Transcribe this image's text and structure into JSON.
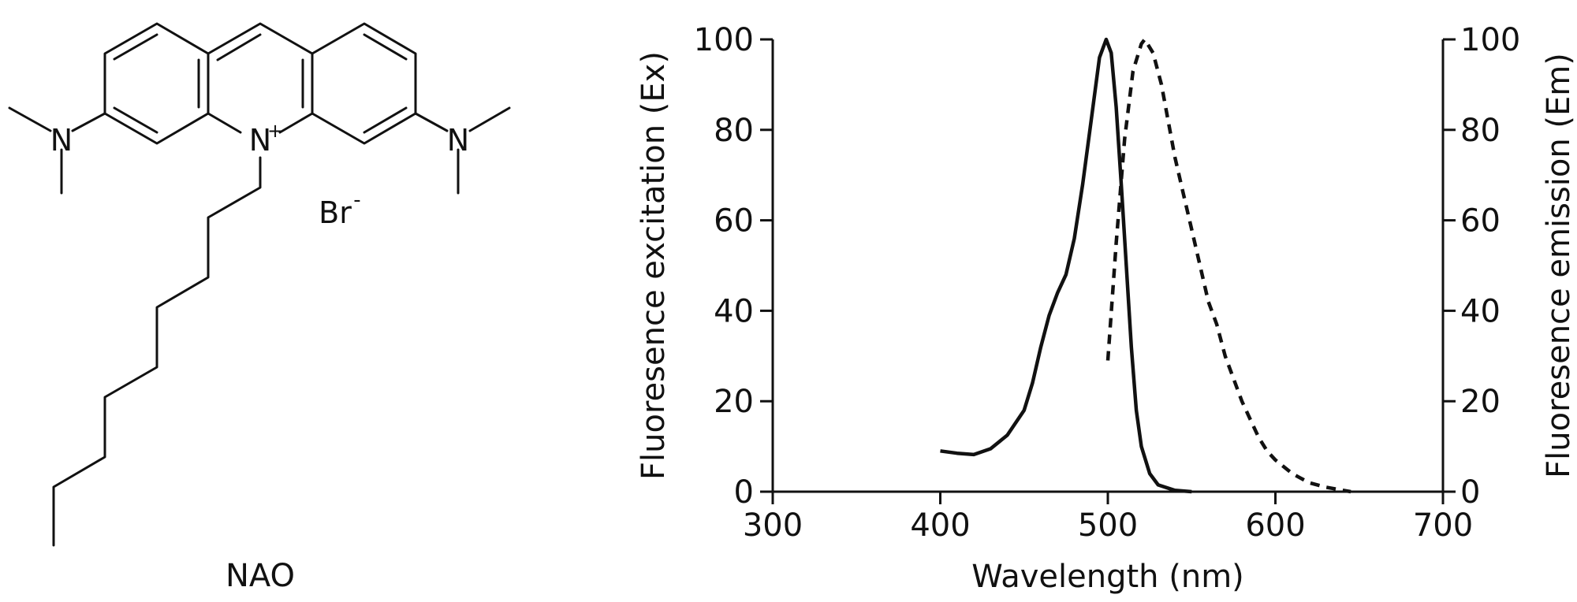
{
  "structure": {
    "atoms": {
      "n_left": "N",
      "n_ring": "N",
      "n_ring_charge": "+",
      "n_right": "N",
      "bromide": "Br",
      "bromide_charge": "-"
    },
    "caption": "NAO"
  },
  "chart_data": {
    "type": "line",
    "x": {
      "label": "Wavelength (nm)",
      "range": [
        300,
        700
      ],
      "ticks": [
        300,
        400,
        500,
        600,
        700
      ]
    },
    "y_left": {
      "label": "Fluoresence excitation (Ex)",
      "range": [
        0,
        100
      ],
      "ticks": [
        0,
        20,
        40,
        60,
        80,
        100
      ]
    },
    "y_right": {
      "label": "Fluoresence emission (Em)",
      "range": [
        0,
        100
      ],
      "ticks": [
        0,
        20,
        40,
        60,
        80,
        100
      ]
    },
    "grid": false,
    "legend": "none",
    "series": [
      {
        "style": "solid",
        "axis": "left",
        "color": "#111111",
        "points": [
          [
            400,
            9
          ],
          [
            410,
            8.5
          ],
          [
            420,
            8.2
          ],
          [
            430,
            9.5
          ],
          [
            440,
            12.5
          ],
          [
            450,
            18
          ],
          [
            455,
            24
          ],
          [
            460,
            32
          ],
          [
            465,
            39
          ],
          [
            470,
            44
          ],
          [
            475,
            48
          ],
          [
            480,
            56
          ],
          [
            485,
            68
          ],
          [
            490,
            82
          ],
          [
            495,
            96
          ],
          [
            499,
            100
          ],
          [
            502,
            97
          ],
          [
            505,
            85
          ],
          [
            508,
            68
          ],
          [
            511,
            50
          ],
          [
            514,
            32
          ],
          [
            517,
            18
          ],
          [
            520,
            10
          ],
          [
            525,
            4
          ],
          [
            530,
            1.5
          ],
          [
            540,
            0.3
          ],
          [
            550,
            0
          ]
        ]
      },
      {
        "style": "dashed",
        "axis": "right",
        "color": "#111111",
        "points": [
          [
            500,
            29
          ],
          [
            505,
            55
          ],
          [
            510,
            78
          ],
          [
            515,
            93
          ],
          [
            520,
            99
          ],
          [
            522,
            100
          ],
          [
            527,
            97
          ],
          [
            532,
            90
          ],
          [
            540,
            74
          ],
          [
            545,
            66
          ],
          [
            550,
            58
          ],
          [
            555,
            50
          ],
          [
            560,
            42
          ],
          [
            565,
            37
          ],
          [
            570,
            30
          ],
          [
            575,
            25
          ],
          [
            580,
            20
          ],
          [
            585,
            16
          ],
          [
            590,
            12
          ],
          [
            595,
            9
          ],
          [
            600,
            7
          ],
          [
            610,
            4
          ],
          [
            620,
            2
          ],
          [
            630,
            1
          ],
          [
            645,
            0
          ]
        ]
      }
    ]
  }
}
